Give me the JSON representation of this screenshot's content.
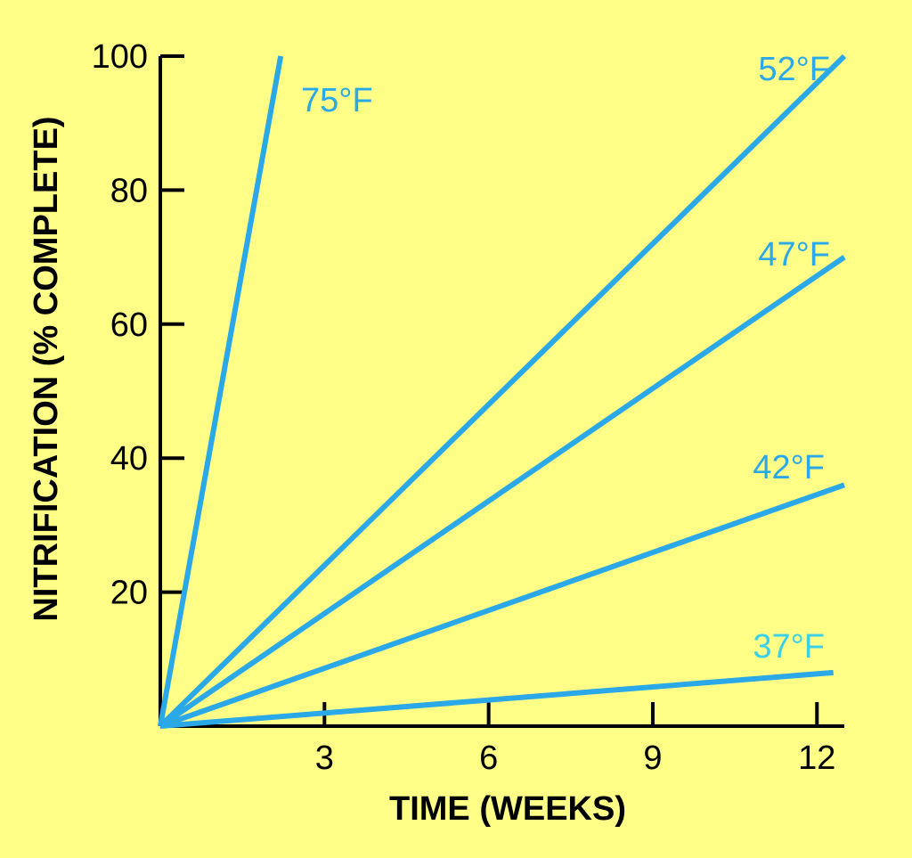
{
  "chart_data": {
    "type": "line",
    "xlabel": "TIME (WEEKS)",
    "ylabel": "NITRIFICATION (% COMPLETE)",
    "xlim": [
      0,
      12.5
    ],
    "ylim": [
      0,
      100
    ],
    "x_ticks": [
      3,
      6,
      9,
      12
    ],
    "y_ticks": [
      20,
      40,
      60,
      80,
      100
    ],
    "grid": false,
    "line_color": "#2aa8e8",
    "series": [
      {
        "name": "75°F",
        "label_color": "#2aa8e8",
        "x": [
          0,
          2.2
        ],
        "y": [
          0,
          100
        ]
      },
      {
        "name": "52°F",
        "label_color": "#2aa8e8",
        "x": [
          0,
          12.5
        ],
        "y": [
          0,
          100
        ]
      },
      {
        "name": "47°F",
        "label_color": "#2aa8e8",
        "x": [
          0,
          12.5
        ],
        "y": [
          0,
          70
        ]
      },
      {
        "name": "42°F",
        "label_color": "#2aa8e8",
        "x": [
          0,
          12.5
        ],
        "y": [
          0,
          36
        ]
      },
      {
        "name": "37°F",
        "label_color": "#39d0e8",
        "x": [
          0,
          12.3
        ],
        "y": [
          0,
          8
        ]
      }
    ]
  }
}
